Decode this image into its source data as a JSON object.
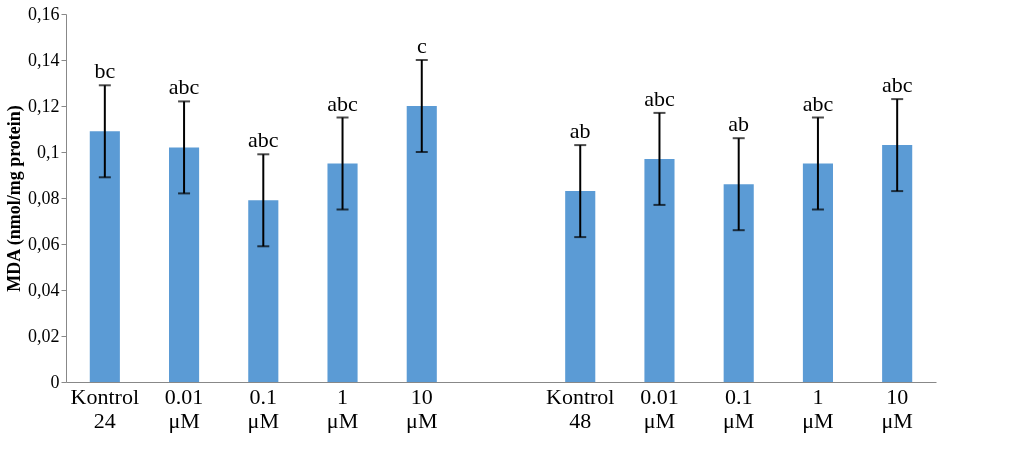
{
  "chart_data": {
    "type": "bar",
    "ylabel": "MDA  (nmol/mg protein)",
    "categories": [
      "Kontrol 24",
      "0.01 μM",
      "0.1 μM",
      "1 μM",
      "10 μM",
      null,
      "Kontrol 48",
      "0.01 μM",
      "0.1 μM",
      "1 μM",
      "10 μM"
    ],
    "values": [
      0.109,
      0.102,
      0.079,
      0.095,
      0.12,
      null,
      0.083,
      0.097,
      0.086,
      0.095,
      0.103
    ],
    "errors": [
      0.02,
      0.02,
      0.02,
      0.02,
      0.02,
      null,
      0.02,
      0.02,
      0.02,
      0.02,
      0.02
    ],
    "value_labels": [
      "bc",
      "abc",
      "abc",
      "abc",
      "c",
      null,
      "ab",
      "abc",
      "ab",
      "abc",
      "abc"
    ],
    "color": "#5b9bd5",
    "ylim": [
      0,
      0.16
    ],
    "yticks": [
      {
        "value": 0,
        "label": "0"
      },
      {
        "value": 0.02,
        "label": "0,02"
      },
      {
        "value": 0.04,
        "label": "0,04"
      },
      {
        "value": 0.06,
        "label": "0,06"
      },
      {
        "value": 0.08,
        "label": "0,08"
      },
      {
        "value": 0.1,
        "label": "0,1"
      },
      {
        "value": 0.12,
        "label": "0,12"
      },
      {
        "value": 0.14,
        "label": "0,14"
      },
      {
        "value": 0.16,
        "label": "0,16"
      }
    ],
    "grid": false
  }
}
